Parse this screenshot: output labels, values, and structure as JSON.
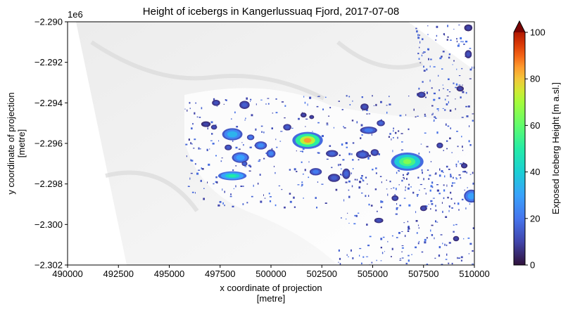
{
  "chart_data": {
    "type": "heatmap",
    "title": "Height of icebergs in Kangerlussuaq Fjord, 2017-07-08",
    "xlabel": [
      "x coordinate of projection",
      "[metre]"
    ],
    "ylabel": [
      "y coordinate of projection",
      "[metre]"
    ],
    "offset_label": "1e6",
    "xlim": [
      490000,
      510000
    ],
    "ylim": [
      -2302000,
      -2290000
    ],
    "x_ticks": [
      490000,
      492500,
      495000,
      497500,
      500000,
      502500,
      505000,
      507500,
      510000
    ],
    "x_tick_labels": [
      "490000",
      "492500",
      "495000",
      "497500",
      "500000",
      "502500",
      "505000",
      "507500",
      "510000"
    ],
    "y_ticks": [
      -2290000,
      -2292000,
      -2294000,
      -2296000,
      -2298000,
      -2300000,
      -2302000
    ],
    "y_tick_labels": [
      "−2.290",
      "−2.292",
      "−2.294",
      "−2.296",
      "−2.298",
      "−2.300",
      "−2.302"
    ],
    "colorbar": {
      "label": "Exposed Iceberg Height [m a.sl.]",
      "colormap": "turbo",
      "range": [
        0,
        100
      ],
      "ticks": [
        0,
        20,
        40,
        60,
        80,
        100
      ],
      "extend": "max"
    },
    "icebergs": [
      {
        "x": 501800,
        "y": -2295850,
        "rx": 750,
        "ry": 420,
        "height": 85
      },
      {
        "x": 506700,
        "y": -2296900,
        "rx": 800,
        "ry": 450,
        "height": 65
      },
      {
        "x": 498100,
        "y": -2295550,
        "rx": 500,
        "ry": 300,
        "height": 40
      },
      {
        "x": 498100,
        "y": -2297600,
        "rx": 700,
        "ry": 220,
        "height": 50
      },
      {
        "x": 498500,
        "y": -2296700,
        "rx": 420,
        "ry": 260,
        "height": 35
      },
      {
        "x": 509850,
        "y": -2298600,
        "rx": 360,
        "ry": 320,
        "height": 35
      },
      {
        "x": 502200,
        "y": -2297400,
        "rx": 300,
        "ry": 180,
        "height": 25
      },
      {
        "x": 503000,
        "y": -2296500,
        "rx": 300,
        "ry": 170,
        "height": 20
      },
      {
        "x": 504500,
        "y": -2296550,
        "rx": 320,
        "ry": 200,
        "height": 20
      },
      {
        "x": 504800,
        "y": -2295350,
        "rx": 420,
        "ry": 180,
        "height": 25
      },
      {
        "x": 505400,
        "y": -2295000,
        "rx": 200,
        "ry": 150,
        "height": 20
      },
      {
        "x": 503100,
        "y": -2297700,
        "rx": 300,
        "ry": 200,
        "height": 18
      },
      {
        "x": 503700,
        "y": -2297500,
        "rx": 200,
        "ry": 260,
        "height": 20
      },
      {
        "x": 499500,
        "y": -2296100,
        "rx": 300,
        "ry": 200,
        "height": 30
      },
      {
        "x": 500000,
        "y": -2296500,
        "rx": 220,
        "ry": 200,
        "height": 28
      },
      {
        "x": 498700,
        "y": -2294100,
        "rx": 250,
        "ry": 200,
        "height": 18
      },
      {
        "x": 497300,
        "y": -2294000,
        "rx": 200,
        "ry": 150,
        "height": 15
      },
      {
        "x": 499000,
        "y": -2295700,
        "rx": 180,
        "ry": 140,
        "height": 25
      },
      {
        "x": 496800,
        "y": -2295050,
        "rx": 230,
        "ry": 140,
        "height": 12
      },
      {
        "x": 497200,
        "y": -2295200,
        "rx": 150,
        "ry": 120,
        "height": 15
      },
      {
        "x": 500800,
        "y": -2295200,
        "rx": 200,
        "ry": 160,
        "height": 18
      },
      {
        "x": 504600,
        "y": -2294200,
        "rx": 200,
        "ry": 170,
        "height": 15
      },
      {
        "x": 505100,
        "y": -2296450,
        "rx": 200,
        "ry": 170,
        "height": 18
      },
      {
        "x": 506100,
        "y": -2298700,
        "rx": 170,
        "ry": 140,
        "height": 15
      },
      {
        "x": 507400,
        "y": -2293600,
        "rx": 200,
        "ry": 150,
        "height": 15
      },
      {
        "x": 508300,
        "y": -2296100,
        "rx": 160,
        "ry": 140,
        "height": 15
      },
      {
        "x": 509300,
        "y": -2293300,
        "rx": 180,
        "ry": 140,
        "height": 12
      },
      {
        "x": 509700,
        "y": -2291600,
        "rx": 170,
        "ry": 200,
        "height": 15
      },
      {
        "x": 509700,
        "y": -2290300,
        "rx": 200,
        "ry": 170,
        "height": 12
      },
      {
        "x": 509100,
        "y": -2300700,
        "rx": 150,
        "ry": 130,
        "height": 12
      },
      {
        "x": 509500,
        "y": -2297100,
        "rx": 160,
        "ry": 130,
        "height": 12
      },
      {
        "x": 505300,
        "y": -2299800,
        "rx": 220,
        "ry": 130,
        "height": 15
      },
      {
        "x": 507500,
        "y": -2299200,
        "rx": 170,
        "ry": 140,
        "height": 14
      },
      {
        "x": 501600,
        "y": -2294600,
        "rx": 150,
        "ry": 120,
        "height": 12
      },
      {
        "x": 502000,
        "y": -2294700,
        "rx": 120,
        "ry": 100,
        "height": 12
      },
      {
        "x": 497900,
        "y": -2296200,
        "rx": 180,
        "ry": 140,
        "height": 18
      },
      {
        "x": 498700,
        "y": -2297000,
        "rx": 140,
        "ry": 120,
        "height": 20
      }
    ]
  }
}
